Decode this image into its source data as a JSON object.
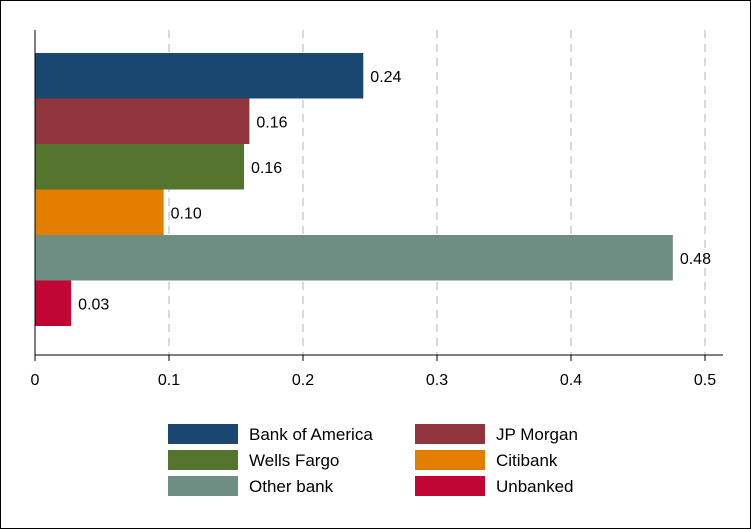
{
  "chart_data": {
    "type": "bar",
    "orientation": "horizontal",
    "title": "",
    "xlabel": "",
    "ylabel": "",
    "xlim": [
      0,
      0.5
    ],
    "x_ticks": [
      {
        "value": 0,
        "label": "0"
      },
      {
        "value": 0.1,
        "label": "0.1"
      },
      {
        "value": 0.2,
        "label": "0.2"
      },
      {
        "value": 0.3,
        "label": "0.3"
      },
      {
        "value": 0.4,
        "label": "0.4"
      },
      {
        "value": 0.5,
        "label": "0.5"
      }
    ],
    "grid": "vertical dashed",
    "legend_placement": "bottom",
    "series": [
      {
        "name": "Bank of America",
        "value": 0.245,
        "label": "0.24",
        "color": "#1a476f"
      },
      {
        "name": "JP Morgan",
        "value": 0.16,
        "label": "0.16",
        "color": "#90353b"
      },
      {
        "name": "Wells Fargo",
        "value": 0.156,
        "label": "0.16",
        "color": "#55752f"
      },
      {
        "name": "Citibank",
        "value": 0.096,
        "label": "0.10",
        "color": "#e37e00"
      },
      {
        "name": "Other bank",
        "value": 0.476,
        "label": "0.48",
        "color": "#6e8e84"
      },
      {
        "name": "Unbanked",
        "value": 0.027,
        "label": "0.03",
        "color": "#c10534"
      }
    ]
  }
}
